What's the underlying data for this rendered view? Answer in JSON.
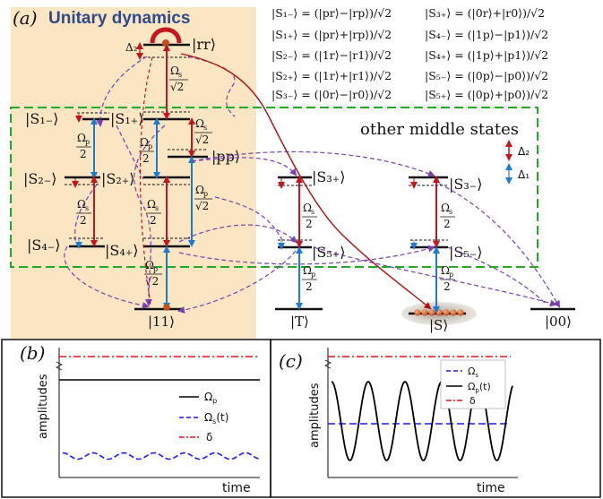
{
  "panel_a": {
    "label": "(a)",
    "title": "Unitary dynamics",
    "other_middle_states": "other middle states",
    "delta2_legend": "Δ₂",
    "delta1_legend": "Δ₁",
    "definitions": [
      "|S₁₋⟩ = (|pr⟩−|rp⟩)/√2",
      "|S₃₊⟩ = (|0r⟩+|r0⟩)/√2",
      "|S₁₊⟩ = (|pr⟩+|rp⟩)/√2",
      "|S₄₋⟩ = (|1p⟩−|p1⟩)/√2",
      "|S₂₋⟩ = (|1r⟩−|r1⟩)/√2",
      "|S₄₊⟩ = (|1p⟩+|p1⟩)/√2",
      "|S₂₊⟩ = (|1r⟩+|r1⟩)/√2",
      "|S₅₋⟩ = (|0p⟩−|p0⟩)/√2",
      "|S₃₋⟩ = (|0r⟩−|r0⟩)/√2",
      "|S₅₊⟩ = (|0p⟩+|p0⟩)/√2"
    ],
    "states": {
      "rr": "|rr⟩",
      "s1m": "|S₁₋⟩",
      "s1p": "|S₁₊⟩",
      "pp": "|pp⟩",
      "s2m": "|S₂₋⟩",
      "s2p": "|S₂₊⟩",
      "s4m": "|S₄₋⟩",
      "s4p": "|S₄₊⟩",
      "s3p": "|S₃₊⟩",
      "s5p": "|S₅₊⟩",
      "s3m": "|S₃₋⟩",
      "s5m": "|S₅₋⟩",
      "g11": "|11⟩",
      "T": "|T⟩",
      "S": "|S⟩",
      "g00": "|00⟩"
    },
    "couplings": {
      "delta2": "Δ₂",
      "omega_s": "Ω",
      "omega_p": "Ω",
      "sub_s": "s",
      "sub_p": "p",
      "sqrt2": "√2",
      "two": "2"
    }
  },
  "panel_b": {
    "label": "(b)",
    "ylabel": "amplitudes",
    "xlabel": "time",
    "legend": [
      {
        "name": "Ω",
        "sub": "p",
        "suffix": "",
        "color": "#000000",
        "style": "solid"
      },
      {
        "name": "Ω",
        "sub": "s",
        "suffix": "(t)",
        "color": "#1a1aff",
        "style": "dashed"
      },
      {
        "name": "δ",
        "sub": "",
        "suffix": "",
        "color": "#e0121b",
        "style": "dashdot"
      }
    ]
  },
  "panel_c": {
    "label": "(c)",
    "ylabel": "amplitudes",
    "xlabel": "time",
    "legend": [
      {
        "name": "Ω",
        "sub": "s",
        "suffix": "",
        "color": "#1a1aff",
        "style": "dashed"
      },
      {
        "name": "Ω",
        "sub": "p",
        "suffix": "(t)",
        "color": "#000000",
        "style": "solid"
      },
      {
        "name": "δ",
        "sub": "",
        "suffix": "",
        "color": "#e0121b",
        "style": "dashdot"
      }
    ]
  },
  "colors": {
    "background_panel": "#fbe6c4",
    "green_box": "#22aa22",
    "red_arrow": "#c4161c",
    "blue_arrow": "#1d7bd0",
    "purple_path": "#7a3fb0",
    "darkred_path": "#b21010",
    "orange_atoms": "#d9662a"
  }
}
